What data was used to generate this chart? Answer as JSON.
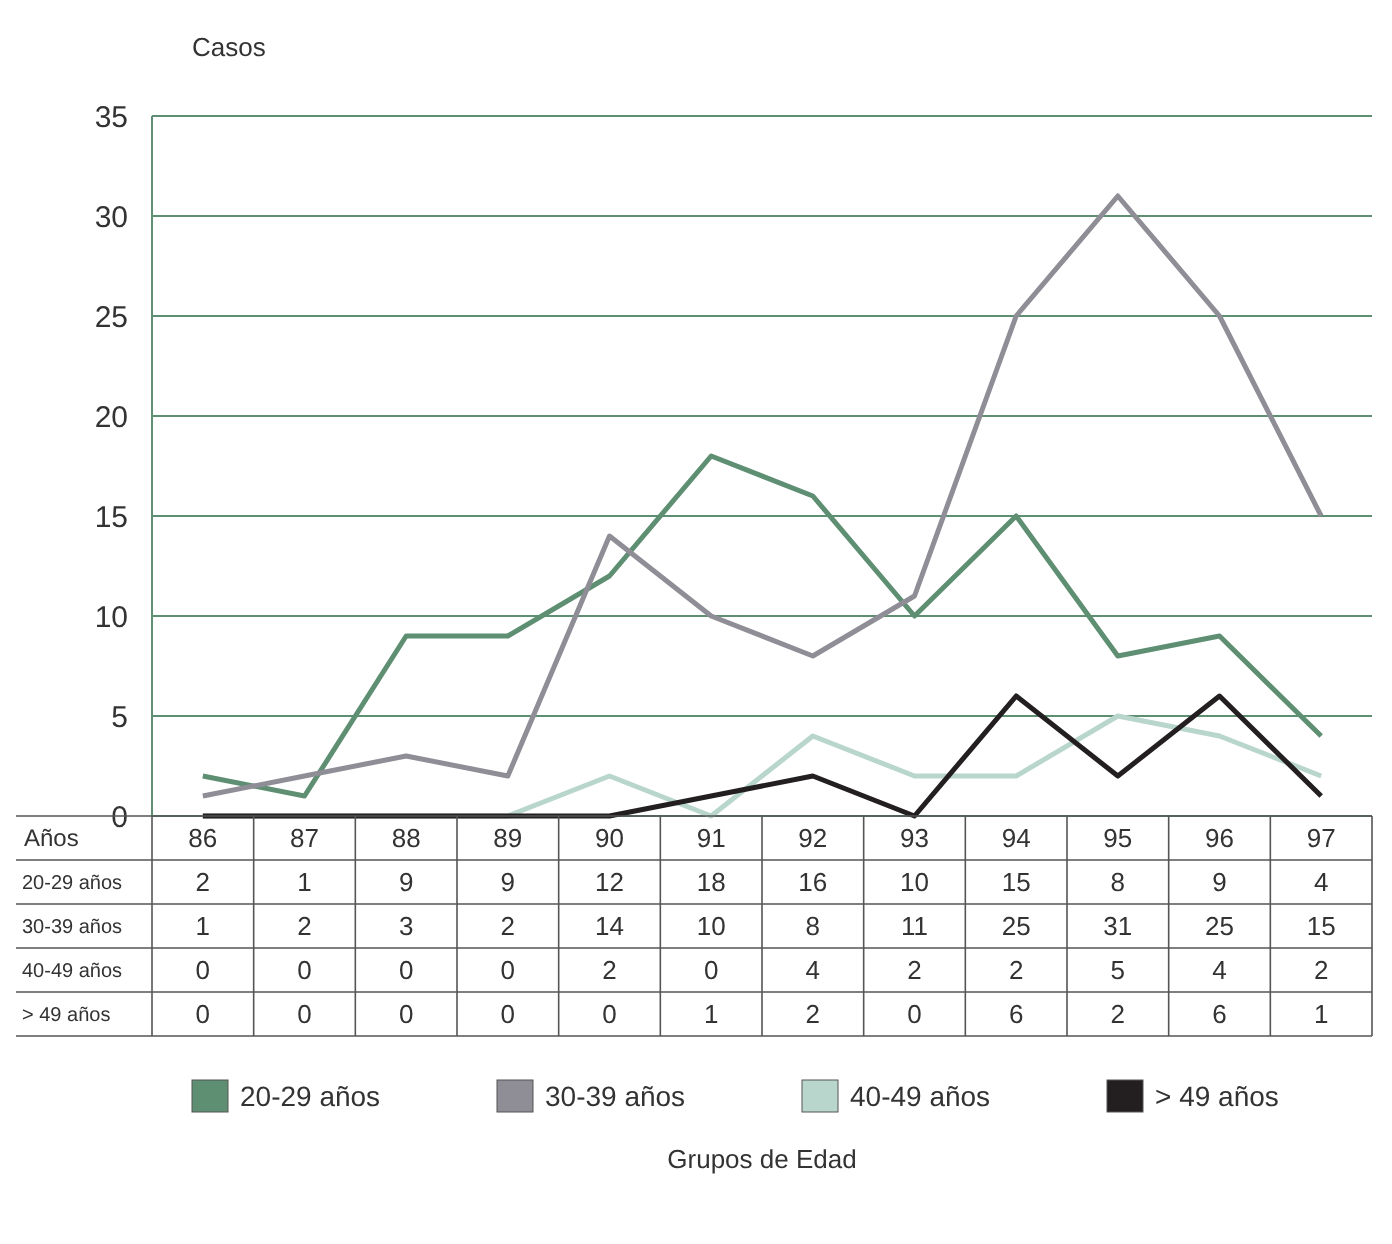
{
  "chart_data": {
    "type": "line",
    "ylabel": "Casos",
    "xlabel": "Años",
    "legend_title": "Grupos de Edad",
    "categories": [
      "86",
      "87",
      "88",
      "89",
      "90",
      "91",
      "92",
      "93",
      "94",
      "95",
      "96",
      "97"
    ],
    "series": [
      {
        "name": "20-29 años",
        "color": "#5e8f72",
        "values": [
          2,
          1,
          9,
          9,
          12,
          18,
          16,
          10,
          15,
          8,
          9,
          4
        ]
      },
      {
        "name": "30-39 años",
        "color": "#8f8d96",
        "values": [
          1,
          2,
          3,
          2,
          14,
          10,
          8,
          11,
          25,
          31,
          25,
          15
        ]
      },
      {
        "name": "40-49 años",
        "color": "#b9d6cd",
        "values": [
          0,
          0,
          0,
          0,
          2,
          0,
          4,
          2,
          2,
          5,
          4,
          2
        ]
      },
      {
        "name": "> 49 años",
        "color": "#231f20",
        "values": [
          0,
          0,
          0,
          0,
          0,
          1,
          2,
          0,
          6,
          2,
          6,
          1
        ]
      }
    ],
    "ylim": [
      0,
      35
    ],
    "yticks": [
      0,
      5,
      10,
      15,
      20,
      25,
      30,
      35
    ],
    "grid": "y",
    "legend": "bottom",
    "data_labels": true,
    "marker": "none",
    "line_style": "solid"
  }
}
